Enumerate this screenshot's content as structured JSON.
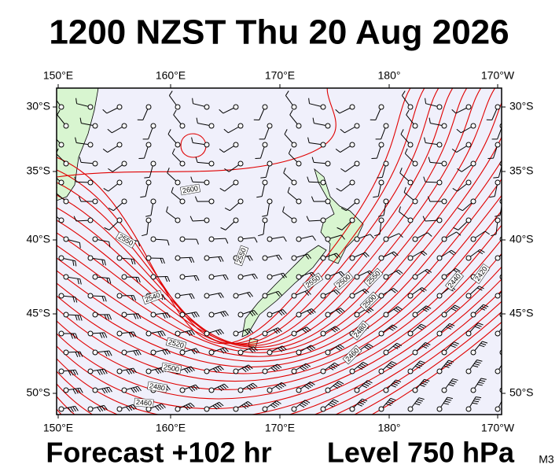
{
  "title": "1200 NZST Thu 20 Aug 2026",
  "lon_labels": [
    "150°E",
    "160°E",
    "170°E",
    "180°",
    "170°W"
  ],
  "lat_labels": [
    "30°S",
    "35°S",
    "40°S",
    "45°S",
    "50°S"
  ],
  "contour_labels": [
    "2600",
    "2550",
    "2550",
    "2540",
    "2520",
    "2500",
    "2480",
    "2460",
    "2550",
    "2500",
    "2550",
    "2500",
    "2480",
    "2460",
    "2440",
    "2420"
  ],
  "footer": {
    "forecast": "Forecast +102 hr",
    "level": "Level 750 hPa",
    "model": "M3"
  }
}
